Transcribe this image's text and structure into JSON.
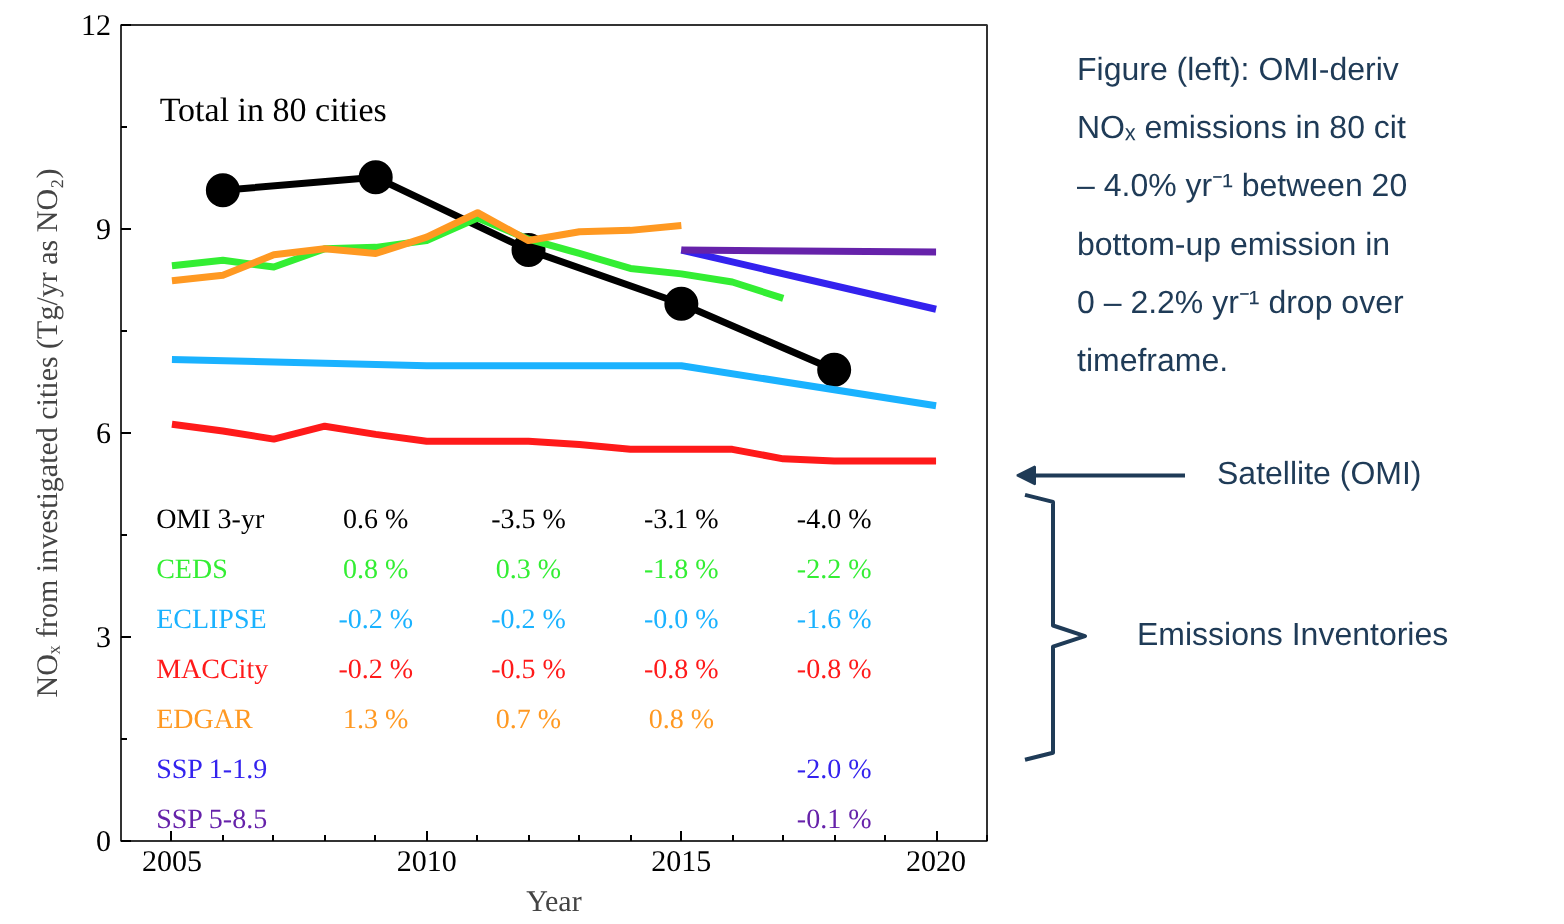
{
  "chart_data": {
    "type": "line",
    "xlabel": "Year",
    "ylabel": "NOₓ from investigated cities (Tg/yr as NO₂)",
    "xlim": [
      2004,
      2021
    ],
    "xticks": [
      2005,
      2010,
      2015,
      2020
    ],
    "ylim": [
      0,
      12
    ],
    "yticks": [
      0,
      3,
      6,
      9,
      12
    ],
    "grid": false,
    "legend": "bottom left",
    "series": [
      {
        "name": "OMI 3-yr",
        "color": "#000000",
        "marker": "circle",
        "x": [
          2006,
          2009,
          2012,
          2015,
          2018
        ],
        "values": [
          9.57,
          9.76,
          8.69,
          7.9,
          6.93
        ]
      },
      {
        "name": "CEDS",
        "color": "#33ee33",
        "x": [
          2005,
          2006,
          2007,
          2008,
          2009,
          2010,
          2011,
          2012,
          2013,
          2014,
          2015,
          2016,
          2017
        ],
        "values": [
          8.46,
          8.54,
          8.44,
          8.71,
          8.73,
          8.83,
          9.16,
          8.85,
          8.64,
          8.42,
          8.34,
          8.22,
          7.98
        ]
      },
      {
        "name": "ECLIPSE",
        "color": "#1ab2ff",
        "x": [
          2005,
          2010,
          2015,
          2020
        ],
        "values": [
          7.08,
          6.99,
          6.99,
          6.4
        ]
      },
      {
        "name": "MACCity",
        "color": "#ff1a1a",
        "x": [
          2005,
          2006,
          2007,
          2008,
          2009,
          2010,
          2011,
          2012,
          2013,
          2014,
          2015,
          2016,
          2017,
          2018,
          2019,
          2020
        ],
        "values": [
          6.13,
          6.03,
          5.91,
          6.1,
          5.98,
          5.88,
          5.88,
          5.88,
          5.83,
          5.76,
          5.76,
          5.76,
          5.62,
          5.59,
          5.59,
          5.59
        ]
      },
      {
        "name": "EDGAR",
        "color": "#ff9922",
        "x": [
          2005,
          2006,
          2007,
          2008,
          2009,
          2010,
          2011,
          2012,
          2013,
          2014,
          2015
        ],
        "values": [
          8.24,
          8.32,
          8.62,
          8.71,
          8.64,
          8.88,
          9.24,
          8.83,
          8.96,
          8.98,
          9.05
        ]
      },
      {
        "name": "SSP 1-1.9",
        "color": "#3322ee",
        "x": [
          2015,
          2020
        ],
        "values": [
          8.69,
          7.82
        ]
      },
      {
        "name": "SSP 5-8.5",
        "color": "#6622aa",
        "x": [
          2015,
          2020
        ],
        "values": [
          8.69,
          8.66
        ]
      }
    ],
    "annotations": [
      "Total in 80 cities",
      "Figure (left): OMI-deriv",
      "NOₓ emissions in 80 cit",
      "– 4.0% yr⁻¹ between 20",
      "bottom-up emission in",
      "0 – 2.2% yr⁻¹ drop over",
      "timeframe.",
      "Satellite (OMI)",
      "Emissions Inventories",
      "0.6 %",
      "-3.5 %",
      "-3.1 %",
      "-4.0 %",
      "0.8 %",
      "0.3 %",
      "-1.8 %",
      "-2.2 %",
      "-0.2 %",
      "-0.2 %",
      "-0.0 %",
      "-1.6 %",
      "-0.2 %",
      "-0.5 %",
      "-0.8 %",
      "-0.8 %",
      "1.3 %",
      "0.7 %",
      "0.8 %",
      "-2.0 %",
      "-0.1 %"
    ]
  }
}
